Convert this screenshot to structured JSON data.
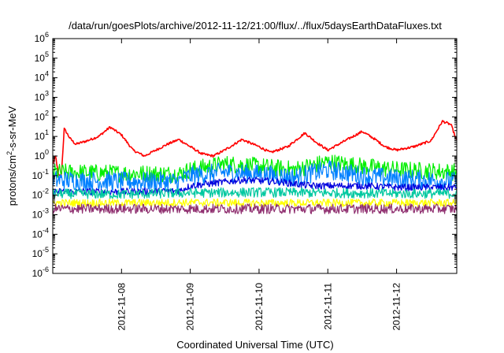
{
  "chart_data": {
    "type": "line",
    "title": "/data/run/goesPlots/archive/2012-11-12/21:00/flux/../flux/5daysEarthDataFluxes.txt",
    "xlabel": "Coordinated Universal Time (UTC)",
    "ylabel_parts": [
      "protons/cm",
      "2",
      "-s-sr-MeV"
    ],
    "yscale": "log",
    "ylim_exp": [
      -6,
      6
    ],
    "y_tick_labels": [
      {
        "base": "10",
        "exp": "-6"
      },
      {
        "base": "10",
        "exp": "-5"
      },
      {
        "base": "10",
        "exp": "-4"
      },
      {
        "base": "10",
        "exp": "-3"
      },
      {
        "base": "10",
        "exp": "-2"
      },
      {
        "base": "10",
        "exp": "-1"
      },
      {
        "base": "10",
        "exp": "0"
      },
      {
        "base": "10",
        "exp": "1"
      },
      {
        "base": "10",
        "exp": "2"
      },
      {
        "base": "10",
        "exp": "3"
      },
      {
        "base": "10",
        "exp": "4"
      },
      {
        "base": "10",
        "exp": "5"
      },
      {
        "base": "10",
        "exp": "6"
      }
    ],
    "xlim": [
      "2012-11-07T00:00",
      "2012-11-12T21:00"
    ],
    "x_ticks": [
      "2012-11-08",
      "2012-11-09",
      "2012-11-10",
      "2012-11-11",
      "2012-11-12"
    ],
    "grid": false,
    "legend": "none",
    "series": [
      {
        "color": "#ff0000",
        "noise": 0.06,
        "points": [
          [
            "2012-11-07T00:00",
            0.4
          ],
          [
            "2012-11-07T01:00",
            1.0
          ],
          [
            "2012-11-07T02:00",
            0.1
          ],
          [
            "2012-11-07T03:00",
            0.1
          ],
          [
            "2012-11-07T04:00",
            25
          ],
          [
            "2012-11-07T06:00",
            8
          ],
          [
            "2012-11-07T08:00",
            4
          ],
          [
            "2012-11-07T12:00",
            6
          ],
          [
            "2012-11-07T16:00",
            10
          ],
          [
            "2012-11-07T20:00",
            30
          ],
          [
            "2012-11-08T00:00",
            12
          ],
          [
            "2012-11-08T04:00",
            2
          ],
          [
            "2012-11-08T08:00",
            1
          ],
          [
            "2012-11-08T12:00",
            2
          ],
          [
            "2012-11-08T16:00",
            4
          ],
          [
            "2012-11-08T20:00",
            7
          ],
          [
            "2012-11-09T00:00",
            3
          ],
          [
            "2012-11-09T04:00",
            1.3
          ],
          [
            "2012-11-09T08:00",
            1
          ],
          [
            "2012-11-09T12:00",
            2
          ],
          [
            "2012-11-09T18:00",
            7
          ],
          [
            "2012-11-10T00:00",
            3
          ],
          [
            "2012-11-10T04:00",
            1.5
          ],
          [
            "2012-11-10T10:00",
            3
          ],
          [
            "2012-11-10T16:00",
            15
          ],
          [
            "2012-11-10T20:00",
            5
          ],
          [
            "2012-11-11T00:00",
            2
          ],
          [
            "2012-11-11T06:00",
            6
          ],
          [
            "2012-11-11T12:00",
            18
          ],
          [
            "2012-11-11T16:00",
            8
          ],
          [
            "2012-11-11T20:00",
            3
          ],
          [
            "2012-11-12T00:00",
            2
          ],
          [
            "2012-11-12T06:00",
            3
          ],
          [
            "2012-11-12T12:00",
            6
          ],
          [
            "2012-11-12T16:00",
            60
          ],
          [
            "2012-11-12T19:00",
            40
          ],
          [
            "2012-11-12T21:00",
            6
          ]
        ]
      },
      {
        "color": "#00ee00",
        "noise": 0.45,
        "points": [
          [
            "2012-11-07T00:00",
            0.15
          ],
          [
            "2012-11-08T00:00",
            0.13
          ],
          [
            "2012-11-08T20:00",
            0.12
          ],
          [
            "2012-11-09T00:00",
            0.2
          ],
          [
            "2012-11-09T12:00",
            0.4
          ],
          [
            "2012-11-10T00:00",
            0.3
          ],
          [
            "2012-11-10T12:00",
            0.2
          ],
          [
            "2012-11-11T00:00",
            0.5
          ],
          [
            "2012-11-11T12:00",
            0.3
          ],
          [
            "2012-11-12T00:00",
            0.2
          ],
          [
            "2012-11-12T21:00",
            0.15
          ]
        ]
      },
      {
        "color": "#0080ff",
        "noise": 0.5,
        "points": [
          [
            "2012-11-07T00:00",
            0.06
          ],
          [
            "2012-11-08T00:00",
            0.05
          ],
          [
            "2012-11-08T20:00",
            0.05
          ],
          [
            "2012-11-09T00:00",
            0.1
          ],
          [
            "2012-11-09T12:00",
            0.15
          ],
          [
            "2012-11-10T00:00",
            0.12
          ],
          [
            "2012-11-10T12:00",
            0.08
          ],
          [
            "2012-11-11T00:00",
            0.2
          ],
          [
            "2012-11-11T12:00",
            0.1
          ],
          [
            "2012-11-12T00:00",
            0.07
          ],
          [
            "2012-11-12T21:00",
            0.05
          ]
        ]
      },
      {
        "color": "#0000dd",
        "noise": 0.18,
        "points": [
          [
            "2012-11-07T00:00",
            0.015
          ],
          [
            "2012-11-08T00:00",
            0.015
          ],
          [
            "2012-11-08T20:00",
            0.016
          ],
          [
            "2012-11-09T00:00",
            0.03
          ],
          [
            "2012-11-09T18:00",
            0.06
          ],
          [
            "2012-11-10T06:00",
            0.05
          ],
          [
            "2012-11-10T18:00",
            0.03
          ],
          [
            "2012-11-11T12:00",
            0.03
          ],
          [
            "2012-11-12T00:00",
            0.025
          ],
          [
            "2012-11-12T21:00",
            0.025
          ]
        ]
      },
      {
        "color": "#00c8a0",
        "noise": 0.25,
        "points": [
          [
            "2012-11-07T00:00",
            0.012
          ],
          [
            "2012-11-08T00:00",
            0.011
          ],
          [
            "2012-11-09T00:00",
            0.013
          ],
          [
            "2012-11-10T00:00",
            0.014
          ],
          [
            "2012-11-11T00:00",
            0.013
          ],
          [
            "2012-11-12T00:00",
            0.012
          ],
          [
            "2012-11-12T21:00",
            0.012
          ]
        ]
      },
      {
        "color": "#ffff00",
        "noise": 0.2,
        "points": [
          [
            "2012-11-07T00:00",
            0.004
          ],
          [
            "2012-11-08T00:00",
            0.004
          ],
          [
            "2012-11-09T00:00",
            0.0042
          ],
          [
            "2012-11-10T00:00",
            0.004
          ],
          [
            "2012-11-11T00:00",
            0.004
          ],
          [
            "2012-11-12T00:00",
            0.004
          ],
          [
            "2012-11-12T21:00",
            0.004
          ]
        ]
      },
      {
        "color": "#903070",
        "noise": 0.25,
        "points": [
          [
            "2012-11-07T00:00",
            0.002
          ],
          [
            "2012-11-08T00:00",
            0.002
          ],
          [
            "2012-11-09T00:00",
            0.002
          ],
          [
            "2012-11-10T00:00",
            0.002
          ],
          [
            "2012-11-11T00:00",
            0.002
          ],
          [
            "2012-11-12T00:00",
            0.002
          ],
          [
            "2012-11-12T21:00",
            0.002
          ]
        ]
      }
    ]
  }
}
